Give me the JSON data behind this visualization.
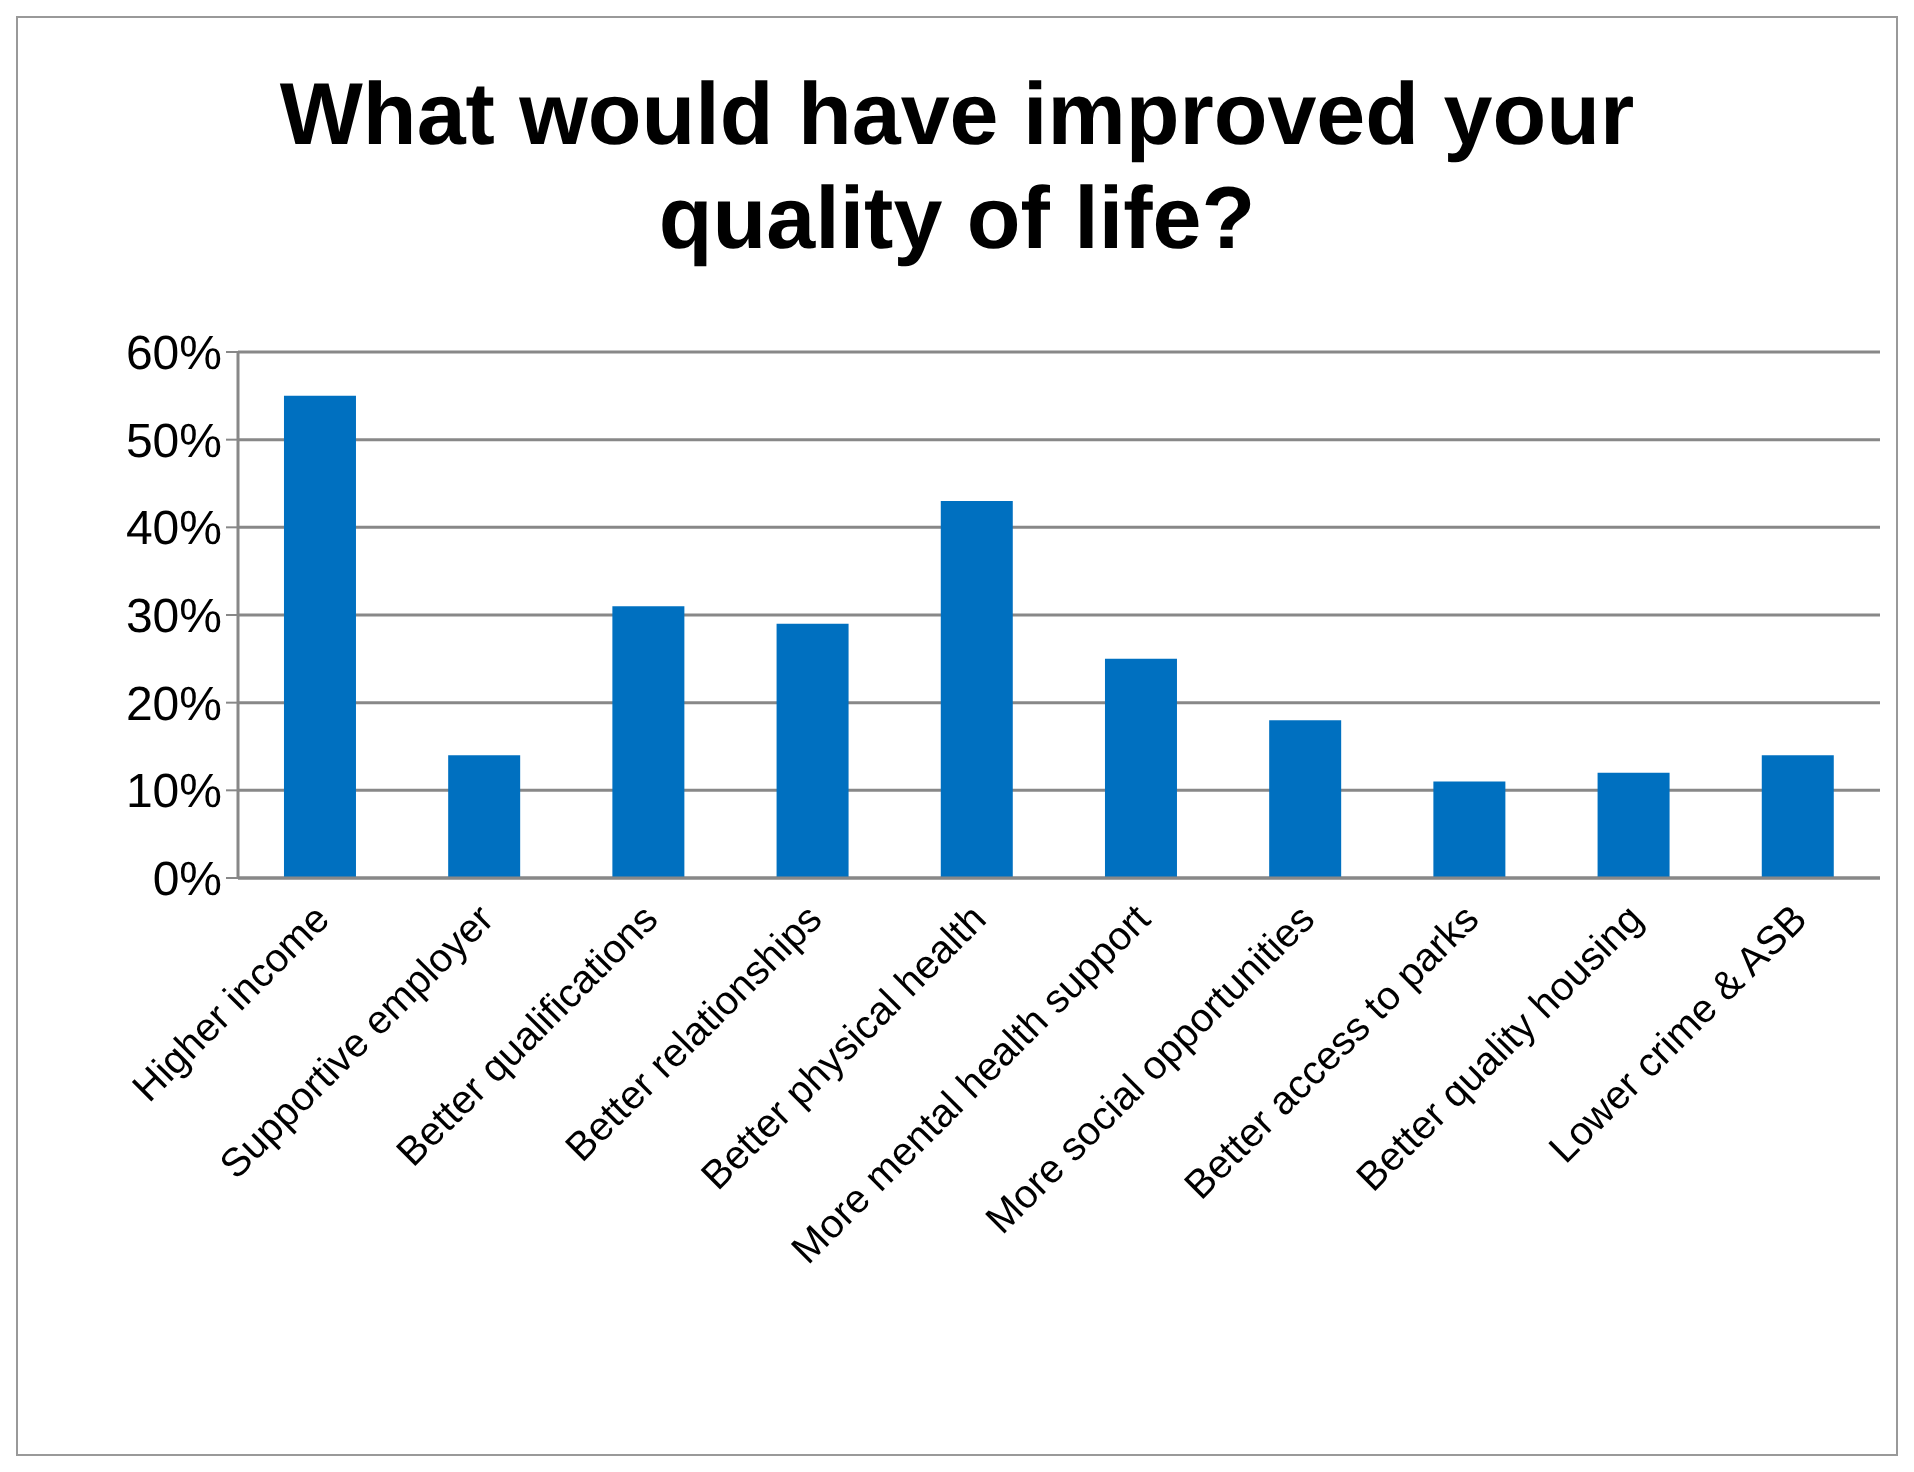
{
  "chart_data": {
    "type": "bar",
    "title": "What would have improved your quality of life?",
    "categories": [
      "Higher income",
      "Supportive employer",
      "Better qualifications",
      "Better relationships",
      "Better physical health",
      "More mental health support",
      "More social opportunities",
      "Better access to parks",
      "Better quality housing",
      "Lower crime & ASB"
    ],
    "values": [
      55,
      14,
      31,
      29,
      43,
      25,
      18,
      11,
      12,
      14
    ],
    "color": "#0070c0",
    "ylim": [
      0,
      60
    ],
    "yticks": [
      {
        "value": 0,
        "label": "0%"
      },
      {
        "value": 10,
        "label": "10%"
      },
      {
        "value": 20,
        "label": "20%"
      },
      {
        "value": 30,
        "label": "30%"
      },
      {
        "value": 40,
        "label": "40%"
      },
      {
        "value": 50,
        "label": "50%"
      },
      {
        "value": 60,
        "label": "60%"
      }
    ],
    "grid": "y"
  }
}
